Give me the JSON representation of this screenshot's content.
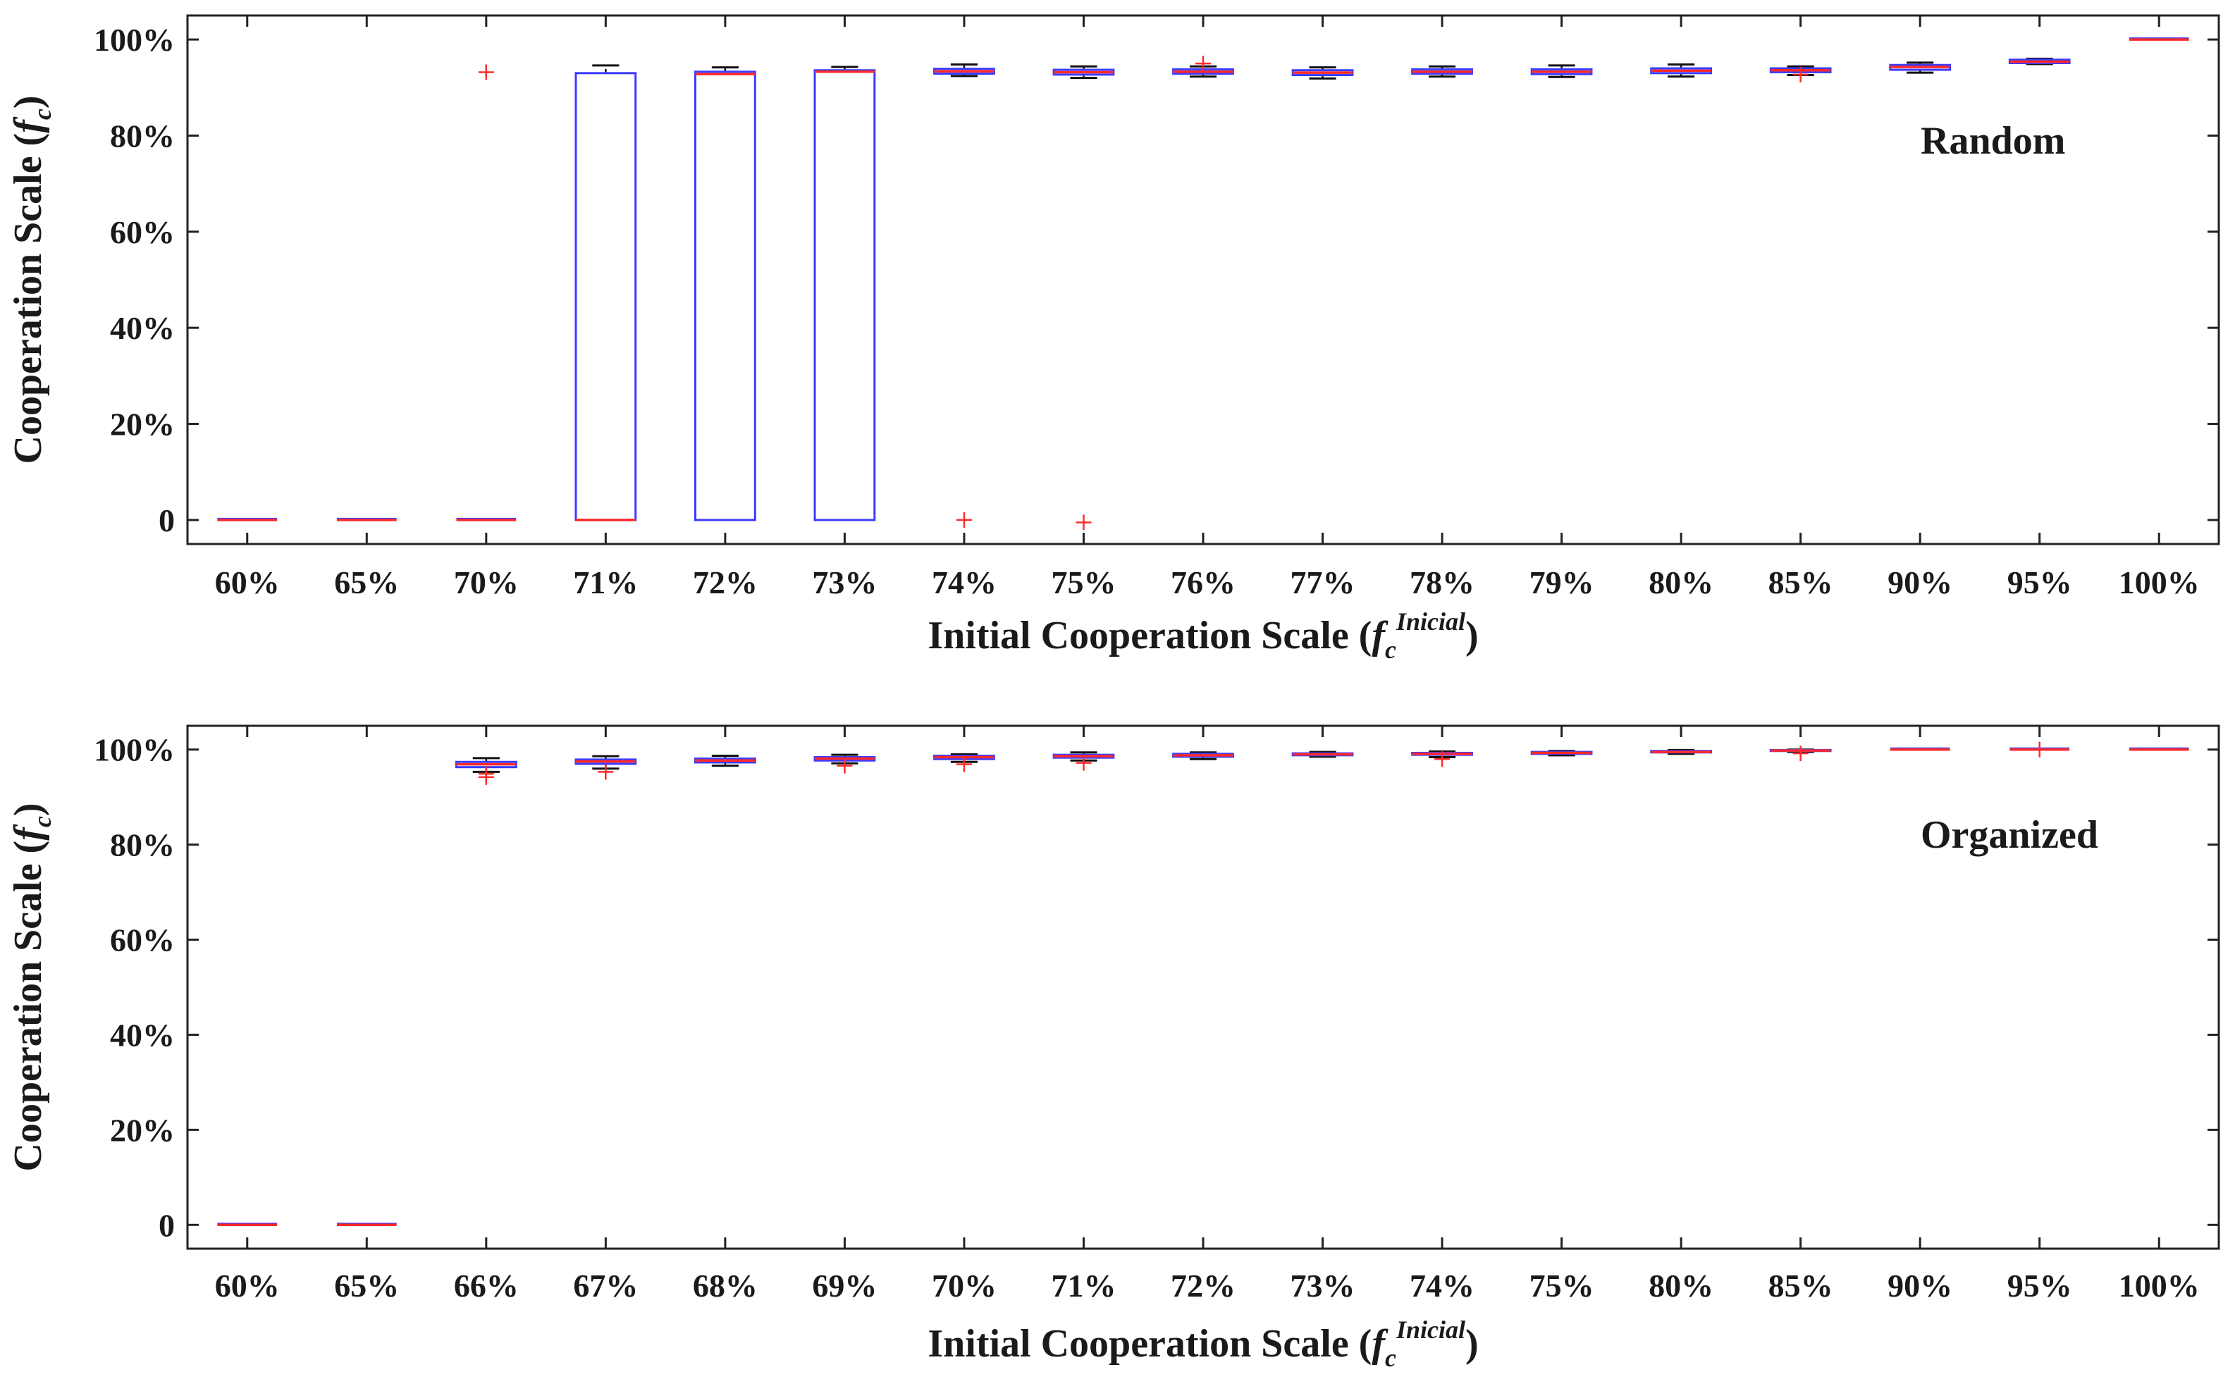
{
  "chart_data": [
    {
      "type": "boxplot",
      "panel_label": "Random",
      "ylabel_main": "Cooperation Scale (",
      "ylabel_var": "f",
      "ylabel_sub": "c",
      "ylabel_close": ")",
      "xlabel_main": "Initial Cooperation Scale (",
      "xlabel_var": "f",
      "xlabel_sub": "c",
      "xlabel_sup": "Inicial",
      "xlabel_close": ")",
      "ylim": [
        -5,
        105
      ],
      "yticks": [
        0,
        20,
        40,
        60,
        80,
        100
      ],
      "ytick_labels": [
        "0",
        "20%",
        "40%",
        "60%",
        "80%",
        "100%"
      ],
      "categories": [
        "60%",
        "65%",
        "70%",
        "71%",
        "72%",
        "73%",
        "74%",
        "75%",
        "76%",
        "77%",
        "78%",
        "79%",
        "80%",
        "85%",
        "90%",
        "95%",
        "100%"
      ],
      "boxes": [
        {
          "q1": 0,
          "median": 0,
          "q3": 0,
          "whisker_low": 0,
          "whisker_high": 0,
          "outliers": []
        },
        {
          "q1": 0,
          "median": 0,
          "q3": 0,
          "whisker_low": 0,
          "whisker_high": 0,
          "outliers": []
        },
        {
          "q1": 0,
          "median": 0,
          "q3": 0,
          "whisker_low": 0,
          "whisker_high": 0,
          "outliers": [
            93.2
          ]
        },
        {
          "q1": 0,
          "median": 0,
          "q3": 93.0,
          "whisker_low": 0,
          "whisker_high": 94.6,
          "outliers": []
        },
        {
          "q1": 0,
          "median": 92.8,
          "q3": 93.3,
          "whisker_low": 0,
          "whisker_high": 94.2,
          "outliers": []
        },
        {
          "q1": 0,
          "median": 93.3,
          "q3": 93.6,
          "whisker_low": 0,
          "whisker_high": 94.3,
          "outliers": []
        },
        {
          "q1": 92.9,
          "median": 93.4,
          "q3": 93.9,
          "whisker_low": 92.4,
          "whisker_high": 94.8,
          "outliers": [
            0
          ]
        },
        {
          "q1": 92.7,
          "median": 93.2,
          "q3": 93.7,
          "whisker_low": 92.0,
          "whisker_high": 94.4,
          "outliers": [
            -0.5
          ]
        },
        {
          "q1": 92.9,
          "median": 93.3,
          "q3": 93.8,
          "whisker_low": 92.3,
          "whisker_high": 94.4,
          "outliers": [
            95.0
          ]
        },
        {
          "q1": 92.6,
          "median": 93.1,
          "q3": 93.6,
          "whisker_low": 91.9,
          "whisker_high": 94.2,
          "outliers": []
        },
        {
          "q1": 92.9,
          "median": 93.3,
          "q3": 93.8,
          "whisker_low": 92.3,
          "whisker_high": 94.4,
          "outliers": []
        },
        {
          "q1": 92.8,
          "median": 93.3,
          "q3": 93.8,
          "whisker_low": 92.2,
          "whisker_high": 94.6,
          "outliers": []
        },
        {
          "q1": 93.0,
          "median": 93.5,
          "q3": 94.0,
          "whisker_low": 92.3,
          "whisker_high": 94.8,
          "outliers": []
        },
        {
          "q1": 93.2,
          "median": 93.6,
          "q3": 94.0,
          "whisker_low": 92.6,
          "whisker_high": 94.4,
          "outliers": [
            92.7
          ]
        },
        {
          "q1": 93.7,
          "median": 94.3,
          "q3": 94.7,
          "whisker_low": 93.1,
          "whisker_high": 95.2,
          "outliers": []
        },
        {
          "q1": 95.1,
          "median": 95.4,
          "q3": 95.8,
          "whisker_low": 94.9,
          "whisker_high": 96.0,
          "outliers": []
        },
        {
          "q1": 100,
          "median": 100,
          "q3": 100,
          "whisker_low": 100,
          "whisker_high": 100,
          "outliers": []
        }
      ]
    },
    {
      "type": "boxplot",
      "panel_label": "Organized",
      "ylabel_main": "Cooperation Scale (",
      "ylabel_var": "f",
      "ylabel_sub": "c",
      "ylabel_close": ")",
      "xlabel_main": "Initial Cooperation Scale (",
      "xlabel_var": "f",
      "xlabel_sub": "c",
      "xlabel_sup": "Inicial",
      "xlabel_close": ")",
      "ylim": [
        -5,
        105
      ],
      "yticks": [
        0,
        20,
        40,
        60,
        80,
        100
      ],
      "ytick_labels": [
        "0",
        "20%",
        "40%",
        "60%",
        "80%",
        "100%"
      ],
      "categories": [
        "60%",
        "65%",
        "66%",
        "67%",
        "68%",
        "69%",
        "70%",
        "71%",
        "72%",
        "73%",
        "74%",
        "75%",
        "80%",
        "85%",
        "90%",
        "95%",
        "100%"
      ],
      "boxes": [
        {
          "q1": 0,
          "median": 0,
          "q3": 0,
          "whisker_low": 0,
          "whisker_high": 0,
          "outliers": []
        },
        {
          "q1": 0,
          "median": 0,
          "q3": 0,
          "whisker_low": 0,
          "whisker_high": 0,
          "outliers": []
        },
        {
          "q1": 96.3,
          "median": 96.9,
          "q3": 97.4,
          "whisker_low": 95.3,
          "whisker_high": 98.2,
          "outliers": [
            94.2,
            94.9
          ]
        },
        {
          "q1": 97.0,
          "median": 97.5,
          "q3": 97.9,
          "whisker_low": 96.0,
          "whisker_high": 98.6,
          "outliers": [
            95.3
          ]
        },
        {
          "q1": 97.3,
          "median": 97.7,
          "q3": 98.1,
          "whisker_low": 96.6,
          "whisker_high": 98.7,
          "outliers": []
        },
        {
          "q1": 97.7,
          "median": 98.1,
          "q3": 98.4,
          "whisker_low": 97.1,
          "whisker_high": 98.9,
          "outliers": [
            96.6
          ]
        },
        {
          "q1": 98.0,
          "median": 98.4,
          "q3": 98.7,
          "whisker_low": 97.4,
          "whisker_high": 99.0,
          "outliers": [
            96.9
          ]
        },
        {
          "q1": 98.3,
          "median": 98.6,
          "q3": 98.9,
          "whisker_low": 97.7,
          "whisker_high": 99.4,
          "outliers": [
            97.2
          ]
        },
        {
          "q1": 98.5,
          "median": 98.8,
          "q3": 99.1,
          "whisker_low": 98.0,
          "whisker_high": 99.4,
          "outliers": []
        },
        {
          "q1": 98.8,
          "median": 99.0,
          "q3": 99.2,
          "whisker_low": 98.5,
          "whisker_high": 99.5,
          "outliers": []
        },
        {
          "q1": 98.9,
          "median": 99.1,
          "q3": 99.3,
          "whisker_low": 98.4,
          "whisker_high": 99.6,
          "outliers": [
            98.0
          ]
        },
        {
          "q1": 99.1,
          "median": 99.3,
          "q3": 99.5,
          "whisker_low": 98.8,
          "whisker_high": 99.7,
          "outliers": []
        },
        {
          "q1": 99.4,
          "median": 99.5,
          "q3": 99.7,
          "whisker_low": 99.1,
          "whisker_high": 99.9,
          "outliers": []
        },
        {
          "q1": 99.7,
          "median": 99.8,
          "q3": 99.9,
          "whisker_low": 99.5,
          "whisker_high": 100,
          "outliers": [
            99.2
          ]
        },
        {
          "q1": 100,
          "median": 100,
          "q3": 100,
          "whisker_low": 100,
          "whisker_high": 100,
          "outliers": []
        },
        {
          "q1": 100,
          "median": 100,
          "q3": 100,
          "whisker_low": 100,
          "whisker_high": 100,
          "outliers": [
            100
          ]
        },
        {
          "q1": 100,
          "median": 100,
          "q3": 100,
          "whisker_low": 100,
          "whisker_high": 100,
          "outliers": []
        }
      ]
    }
  ],
  "colors": {
    "box": "#3b3bff",
    "median": "#ff2a2a",
    "whisker": "#111111",
    "outlier": "#ff2a2a",
    "axis": "#222222"
  }
}
